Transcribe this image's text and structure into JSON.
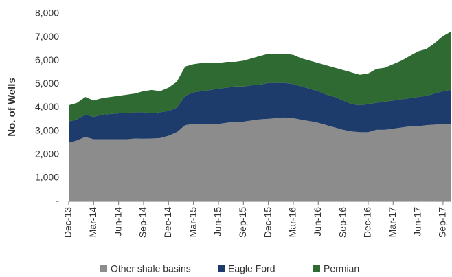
{
  "chart_data": {
    "type": "stacked_area",
    "y_axis_label": "No. of Wells",
    "categories": [
      "Dec-13",
      null,
      null,
      "Mar-14",
      null,
      null,
      "Jun-14",
      null,
      null,
      "Sep-14",
      null,
      null,
      "Dec-14",
      null,
      null,
      "Mar-15",
      null,
      null,
      "Jun-15",
      null,
      null,
      "Sep-15",
      null,
      null,
      "Dec-15",
      null,
      null,
      "Mar-16",
      null,
      null,
      "Jun-16",
      null,
      null,
      "Sep-16",
      null,
      null,
      "Dec-16",
      null,
      null,
      "Mar-17",
      null,
      null,
      "Jun-17",
      null,
      null,
      "Sep-17",
      null
    ],
    "series": [
      {
        "name": "Other shale basins",
        "color": "#8c8c8c",
        "values": [
          2500,
          2600,
          2750,
          2650,
          2650,
          2650,
          2650,
          2650,
          2680,
          2670,
          2680,
          2700,
          2800,
          2950,
          3250,
          3300,
          3300,
          3300,
          3300,
          3350,
          3400,
          3400,
          3450,
          3500,
          3520,
          3550,
          3580,
          3550,
          3480,
          3420,
          3350,
          3250,
          3150,
          3050,
          2980,
          2950,
          2950,
          3050,
          3050,
          3100,
          3150,
          3200,
          3200,
          3250,
          3270,
          3300,
          3300
        ]
      },
      {
        "name": "Eagle Ford",
        "color": "#1d3c6b",
        "values": [
          900,
          900,
          950,
          950,
          1050,
          1070,
          1100,
          1100,
          1120,
          1130,
          1070,
          1100,
          1050,
          1050,
          1250,
          1350,
          1400,
          1450,
          1500,
          1500,
          1500,
          1500,
          1500,
          1480,
          1530,
          1500,
          1470,
          1450,
          1420,
          1380,
          1350,
          1300,
          1300,
          1250,
          1170,
          1150,
          1200,
          1150,
          1200,
          1200,
          1200,
          1200,
          1250,
          1250,
          1330,
          1400,
          1450
        ]
      },
      {
        "name": "Permian",
        "color": "#2e6a32",
        "values": [
          700,
          700,
          750,
          700,
          700,
          730,
          750,
          800,
          800,
          900,
          1000,
          900,
          1000,
          1100,
          1250,
          1200,
          1200,
          1150,
          1100,
          1100,
          1050,
          1100,
          1150,
          1220,
          1250,
          1250,
          1250,
          1250,
          1200,
          1200,
          1200,
          1250,
          1250,
          1300,
          1350,
          1300,
          1300,
          1450,
          1450,
          1550,
          1650,
          1800,
          1950,
          2000,
          2150,
          2350,
          2500
        ]
      }
    ],
    "ylim": [
      0,
      8000
    ],
    "yticks": [
      {
        "value": 0,
        "label": "-"
      },
      {
        "value": 1000,
        "label": "1,000"
      },
      {
        "value": 2000,
        "label": "2,000"
      },
      {
        "value": 3000,
        "label": "3,000"
      },
      {
        "value": 4000,
        "label": "4,000"
      },
      {
        "value": 5000,
        "label": "5,000"
      },
      {
        "value": 6000,
        "label": "6,000"
      },
      {
        "value": 7000,
        "label": "7,000"
      },
      {
        "value": 8000,
        "label": "8,000"
      }
    ],
    "legend": "bottom",
    "grid": false
  }
}
